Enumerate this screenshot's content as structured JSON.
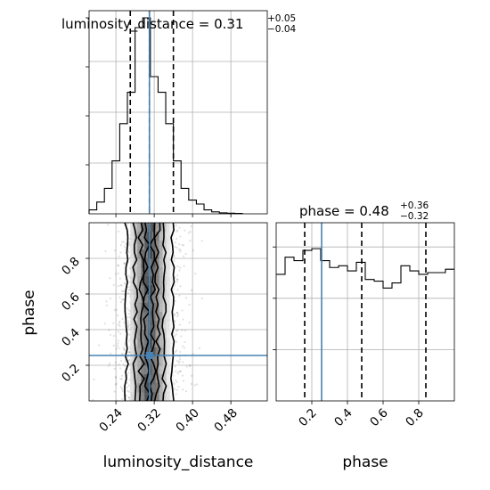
{
  "chart_data": {
    "type": "corner",
    "parameters": [
      "luminosity_distance",
      "phase"
    ],
    "truth_color": "#4682b4",
    "truths": {
      "luminosity_distance": 0.31,
      "phase": 0.255
    },
    "grid": true,
    "panels": [
      {
        "id": "hist-luminosity_distance",
        "type": "histogram",
        "parameter": "luminosity_distance",
        "title_name": "luminosity_distance",
        "title_value": "0.31",
        "title_plus": "+0.05",
        "title_minus": "−0.04",
        "xlim": [
          0.184,
          0.556
        ],
        "bins": [
          [
            0.184,
            0.2
          ],
          [
            0.2,
            0.216
          ],
          [
            0.216,
            0.232
          ],
          [
            0.232,
            0.248
          ],
          [
            0.248,
            0.264
          ],
          [
            0.264,
            0.28
          ],
          [
            0.28,
            0.296
          ],
          [
            0.296,
            0.312
          ],
          [
            0.312,
            0.328
          ],
          [
            0.328,
            0.344
          ],
          [
            0.344,
            0.36
          ],
          [
            0.36,
            0.376
          ],
          [
            0.376,
            0.392
          ],
          [
            0.392,
            0.408
          ],
          [
            0.408,
            0.424
          ],
          [
            0.424,
            0.44
          ],
          [
            0.44,
            0.456
          ],
          [
            0.456,
            0.472
          ],
          [
            0.472,
            0.488
          ],
          [
            0.488,
            0.504
          ]
        ],
        "counts": [
          0.02,
          0.06,
          0.13,
          0.27,
          0.46,
          0.62,
          0.95,
          1.0,
          0.7,
          0.62,
          0.46,
          0.27,
          0.13,
          0.07,
          0.05,
          0.02,
          0.01,
          0.005,
          0.003,
          0.002
        ],
        "quantiles": [
          0.27,
          0.31,
          0.36
        ],
        "grid_x": [
          0.24,
          0.32,
          0.4,
          0.48
        ]
      },
      {
        "id": "hist-phase",
        "type": "histogram",
        "parameter": "phase",
        "title_name": "phase",
        "title_value": "0.48",
        "title_plus": "+0.36",
        "title_minus": "−0.32",
        "xlim": [
          0.0,
          1.0
        ],
        "bins": [
          [
            0.0,
            0.05
          ],
          [
            0.05,
            0.1
          ],
          [
            0.1,
            0.15
          ],
          [
            0.15,
            0.2
          ],
          [
            0.2,
            0.25
          ],
          [
            0.25,
            0.3
          ],
          [
            0.3,
            0.35
          ],
          [
            0.35,
            0.4
          ],
          [
            0.4,
            0.45
          ],
          [
            0.45,
            0.5
          ],
          [
            0.5,
            0.55
          ],
          [
            0.55,
            0.6
          ],
          [
            0.6,
            0.65
          ],
          [
            0.65,
            0.7
          ],
          [
            0.7,
            0.75
          ],
          [
            0.75,
            0.8
          ],
          [
            0.8,
            0.85
          ],
          [
            0.85,
            0.9
          ],
          [
            0.9,
            0.95
          ],
          [
            0.95,
            1.0
          ]
        ],
        "counts": [
          0.74,
          0.84,
          0.82,
          0.88,
          0.89,
          0.82,
          0.78,
          0.79,
          0.76,
          0.81,
          0.71,
          0.7,
          0.66,
          0.69,
          0.79,
          0.76,
          0.74,
          0.75,
          0.75,
          0.77
        ],
        "quantiles": [
          0.16,
          0.48,
          0.84
        ],
        "grid_x": [
          0.2,
          0.4,
          0.6,
          0.8
        ]
      },
      {
        "id": "2d-luminosity_distance-phase",
        "type": "2d-density",
        "x": "luminosity_distance",
        "y": "phase",
        "xlim": [
          0.184,
          0.556
        ],
        "ylim": [
          0.0,
          1.0
        ],
        "x_ticks": [
          "0.24",
          "0.32",
          "0.40",
          "0.48"
        ],
        "x_tick_values": [
          0.24,
          0.32,
          0.4,
          0.48
        ],
        "y_ticks": [
          "0.2",
          "0.4",
          "0.6",
          "0.8"
        ],
        "y_tick_values": [
          0.2,
          0.4,
          0.6,
          0.8
        ],
        "contour_x_bounds": [
          [
            0.262,
            0.358
          ],
          [
            0.28,
            0.34
          ],
          [
            0.293,
            0.327
          ],
          [
            0.303,
            0.316
          ]
        ],
        "truth_point": [
          0.31,
          0.255
        ]
      }
    ],
    "bottom_axis_labels": {
      "luminosity_distance": "luminosity_distance",
      "phase": "phase"
    },
    "hist_phase_x_ticks": [
      "0.2",
      "0.4",
      "0.6",
      "0.8"
    ],
    "left_axis_label": "phase"
  }
}
